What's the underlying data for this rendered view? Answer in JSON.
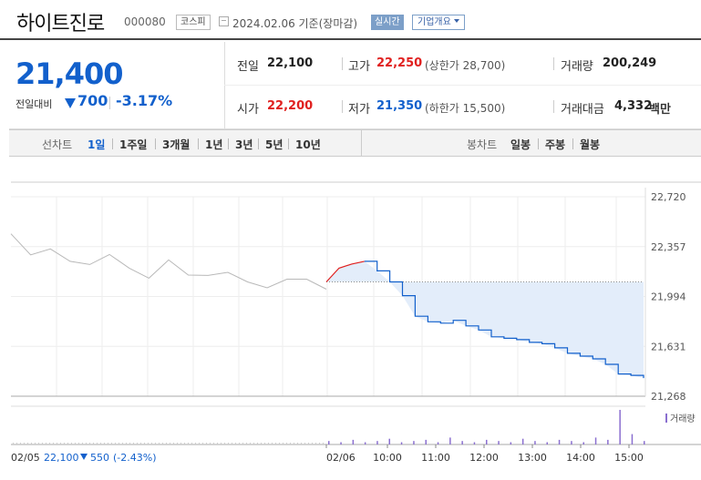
{
  "header": {
    "stock_name": "하이트진로",
    "stock_code": "000080",
    "market": "코스피",
    "date_text": "2024.02.06 기준(장마감)",
    "realtime_label": "실시간",
    "company_label": "기업개요"
  },
  "summary": {
    "current_price": "21,400",
    "change_label": "전일대비",
    "change_value": "700",
    "change_pct": "-3.17%",
    "prev_label": "전일",
    "prev_value": "22,100",
    "open_label": "시가",
    "open_value": "22,200",
    "high_label": "고가",
    "high_value": "22,250",
    "upper_limit": "(상한가 28,700)",
    "low_label": "저가",
    "low_value": "21,350",
    "lower_limit": "(하한가 15,500)",
    "volume_label": "거래량",
    "volume_value": "200,249",
    "amount_label": "거래대금",
    "amount_value": "4,332",
    "amount_unit": "백만"
  },
  "tabs": {
    "line_label": "선차트",
    "line_items": [
      "1일",
      "1주일",
      "3개월",
      "1년",
      "3년",
      "5년",
      "10년"
    ],
    "candle_label": "봉차트",
    "candle_items": [
      "일봉",
      "주봉",
      "월봉"
    ]
  },
  "colors": {
    "up": "#e0201f",
    "down": "#1260cc",
    "prev_line": "#8c8c8c",
    "fill": "#e3edfa"
  },
  "chart_data": {
    "type": "line",
    "series": [
      {
        "values": [
          22100,
          22200,
          22230,
          22250,
          22180,
          22100,
          22000,
          21850,
          21810,
          21800,
          21820,
          21780,
          21750,
          21700,
          21690,
          21680,
          21660,
          21650,
          21620,
          21580,
          21560,
          21540,
          21500,
          21430,
          21420,
          21400
        ]
      }
    ],
    "prev_day_values": [
      22450,
      22350,
      22300,
      22250,
      22280,
      22260,
      22200,
      22180,
      22220,
      22150,
      22200,
      22130,
      22100,
      22110,
      22080,
      22120,
      22100
    ],
    "prev_close": 22100,
    "y_ticks": [
      "22,720",
      "22,357",
      "21,994",
      "21,631",
      "21,268"
    ],
    "ylim": [
      21268,
      22720
    ],
    "x_ticks": [
      "02/06",
      "10:00",
      "11:00",
      "12:00",
      "13:00",
      "14:00",
      "15:00"
    ],
    "volume_label": "거래량",
    "volume": [
      3,
      2,
      4,
      2,
      3,
      5,
      2,
      3,
      4,
      2,
      6,
      3,
      2,
      4,
      3,
      2,
      5,
      3,
      2,
      4,
      3,
      2,
      6,
      4,
      30,
      9,
      3
    ],
    "footer": {
      "date": "02/05",
      "price": "22,100",
      "change": "550",
      "pct": "(-2.43%)"
    }
  }
}
